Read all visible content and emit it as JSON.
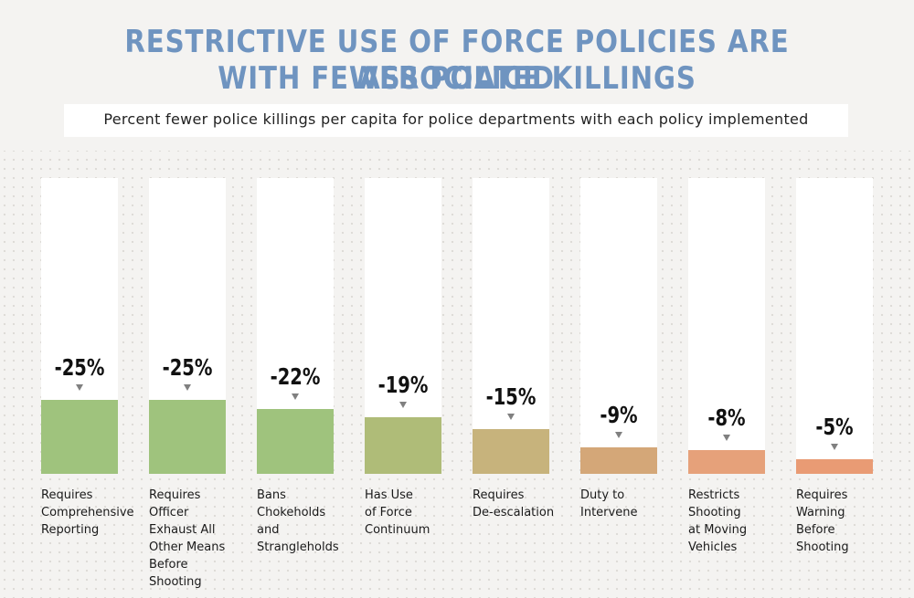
{
  "title_line1": "RESTRICTIVE USE OF FORCE POLICIES ARE ASSOCIATED",
  "title_line2": "WITH FEWER POLICE KILLINGS",
  "subtitle": "Percent fewer police killings per capita for police departments with each policy implemented",
  "colors": {
    "title": "#6f94c0",
    "marker": "#808080",
    "bars": [
      "#9fc37d",
      "#9fc37d",
      "#9fc37d",
      "#afbc78",
      "#c7b37c",
      "#d4a778",
      "#e6a17a",
      "#e99b74"
    ]
  },
  "chart_data": {
    "type": "bar",
    "title": "RESTRICTIVE USE OF FORCE POLICIES ARE ASSOCIATED WITH FEWER POLICE KILLINGS",
    "subtitle": "Percent fewer police killings per capita for police departments with each policy implemented",
    "categories": [
      "Requires Comprehensive Reporting",
      "Requires Officer Exhaust All Other Means Before Shooting",
      "Bans Chokeholds and Strangleholds",
      "Has Use of Force Continuum",
      "Requires De-escalation",
      "Duty to Intervene",
      "Restricts Shooting at Moving Vehicles",
      "Requires Warning Before Shooting"
    ],
    "category_lines": [
      [
        "Requires",
        "Comprehensive",
        "Reporting"
      ],
      [
        "Requires",
        "Officer",
        "Exhaust All",
        "Other Means",
        "Before",
        "Shooting"
      ],
      [
        "Bans",
        "Chokeholds",
        "and",
        "Strangleholds"
      ],
      [
        "Has Use",
        "of Force",
        "Continuum"
      ],
      [
        "Requires",
        "De-escalation"
      ],
      [
        "Duty to",
        "Intervene"
      ],
      [
        "Restricts",
        "Shooting",
        "at Moving",
        "Vehicles"
      ],
      [
        "Requires",
        "Warning",
        "Before",
        "Shooting"
      ]
    ],
    "values": [
      -25,
      -25,
      -22,
      -19,
      -15,
      -9,
      -8,
      -5
    ],
    "labels": [
      "-25%",
      "-25%",
      "-22%",
      "-19%",
      "-15%",
      "-9%",
      "-8%",
      "-5%"
    ],
    "ylim": [
      0,
      -100
    ],
    "unit": "%"
  }
}
